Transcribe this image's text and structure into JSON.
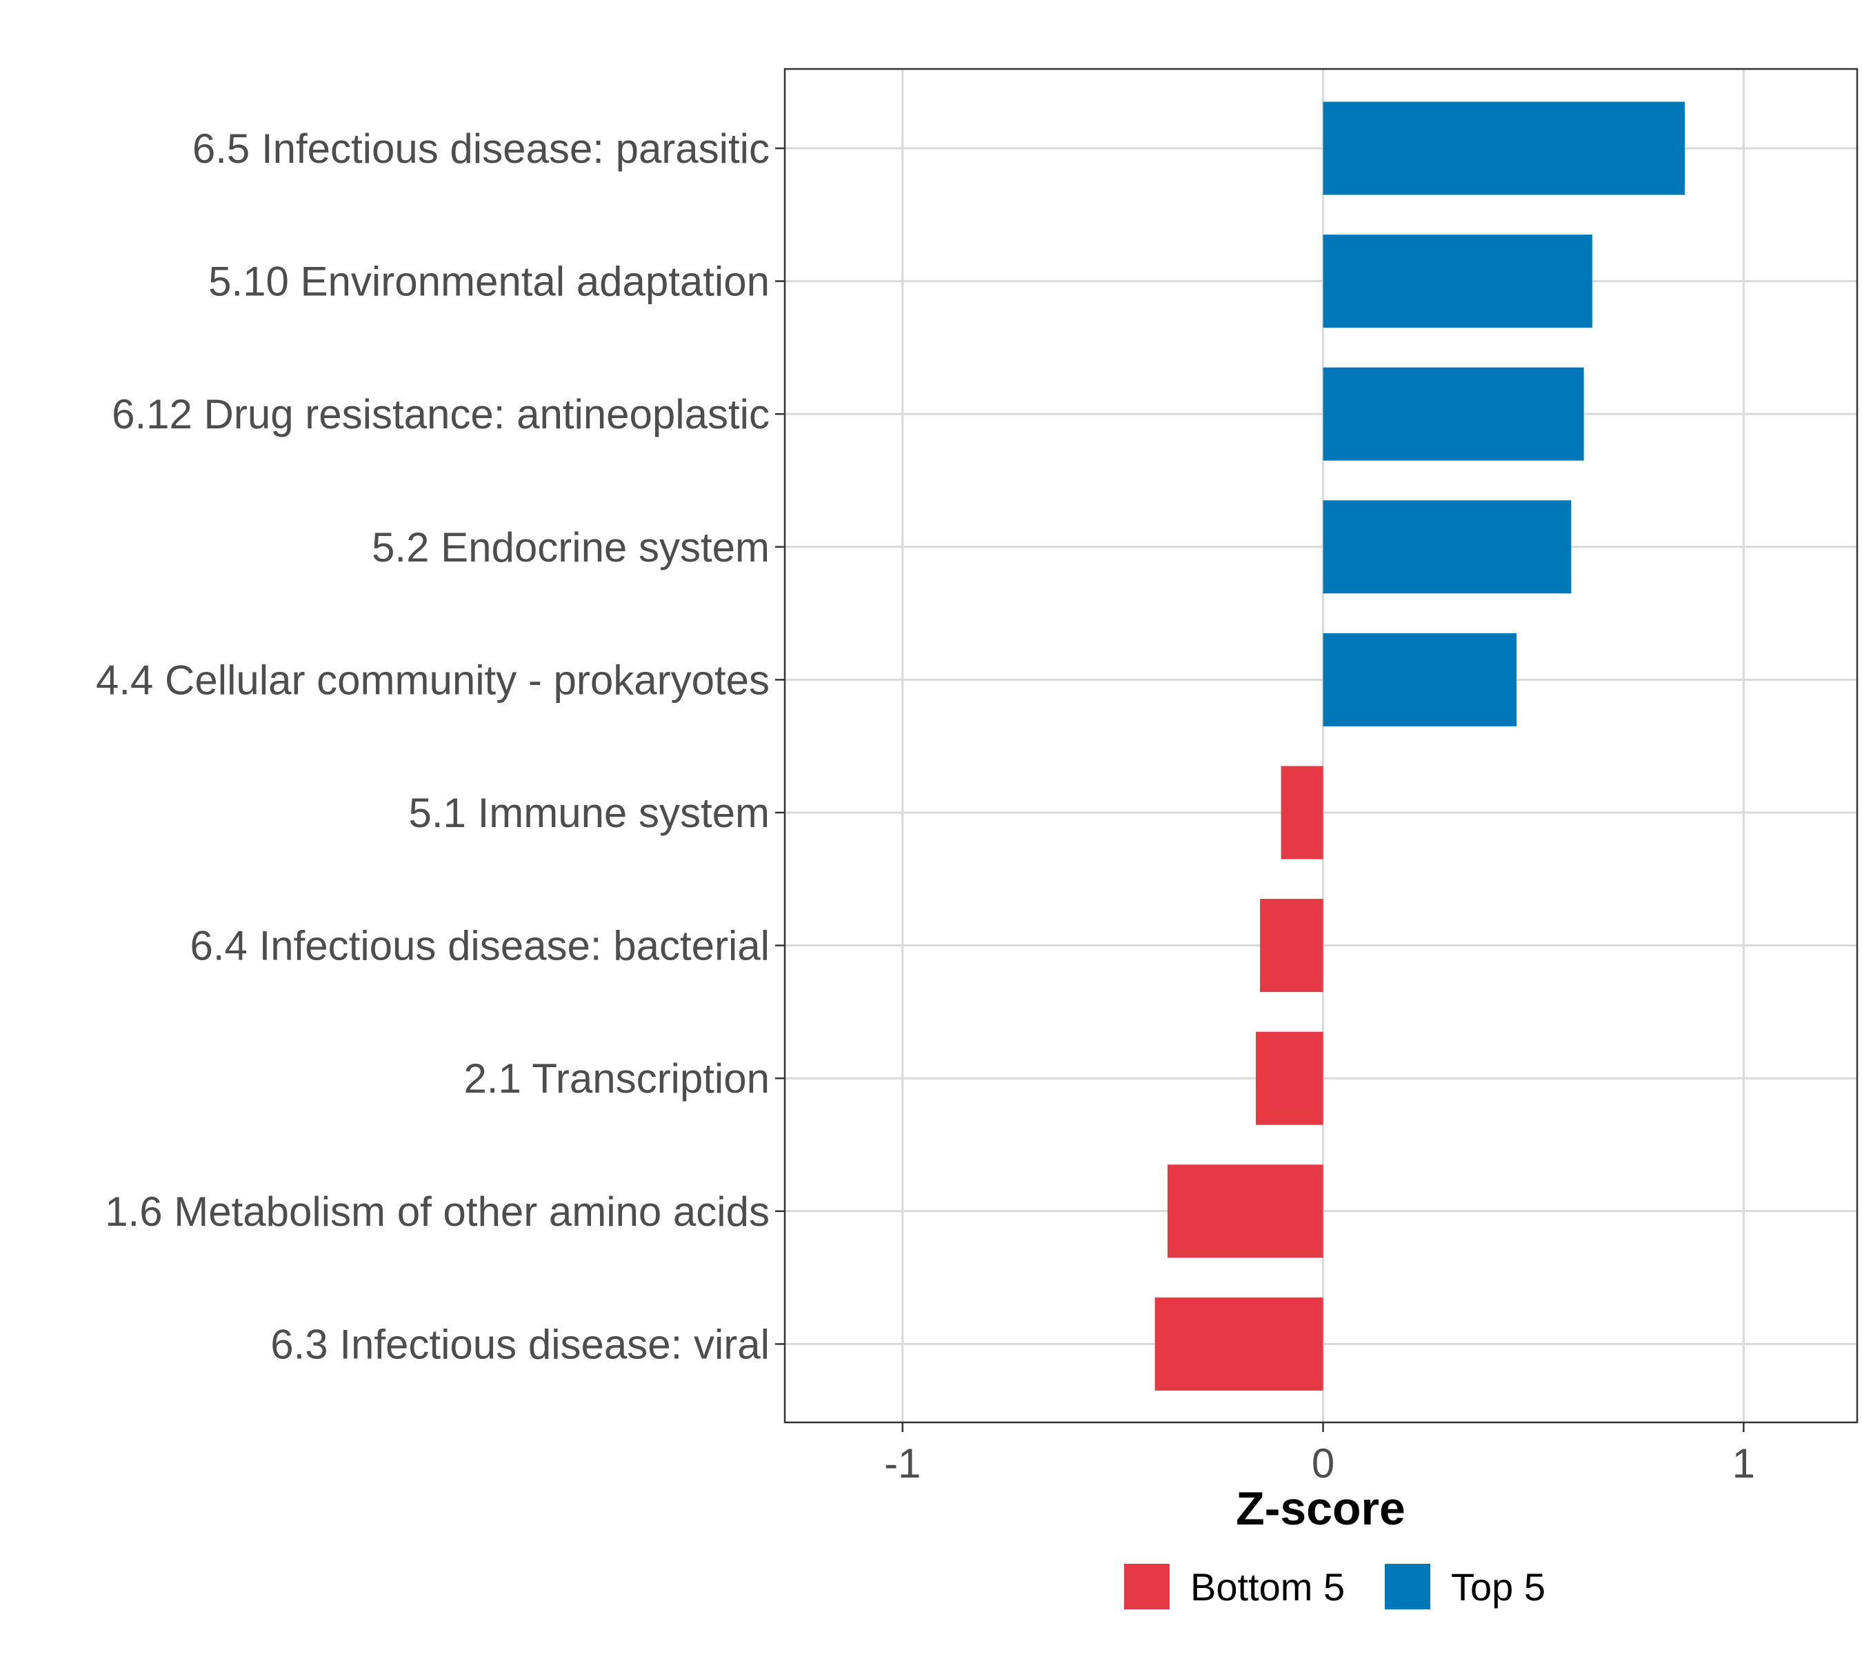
{
  "chart_data": {
    "type": "bar",
    "orientation": "horizontal",
    "title": "",
    "xlabel": "Z-score",
    "ylabel": "",
    "xlim": [
      -1.28,
      1.27
    ],
    "xticks": [
      -1,
      0,
      1
    ],
    "xtick_labels": [
      "-1",
      "0",
      "1"
    ],
    "grid": true,
    "legend_position": "bottom",
    "categories": [
      "6.5 Infectious disease: parasitic",
      "5.10 Environmental adaptation",
      "6.12 Drug resistance: antineoplastic",
      "5.2 Endocrine system",
      "4.4 Cellular community - prokaryotes",
      "5.1 Immune system",
      "6.4 Infectious disease: bacterial",
      "2.1 Transcription",
      "1.6 Metabolism of other amino acids",
      "6.3 Infectious disease: viral"
    ],
    "values": [
      0.86,
      0.64,
      0.62,
      0.59,
      0.46,
      -0.1,
      -0.15,
      -0.16,
      -0.37,
      -0.4
    ],
    "groups": [
      "Top 5",
      "Top 5",
      "Top 5",
      "Top 5",
      "Top 5",
      "Bottom 5",
      "Bottom 5",
      "Bottom 5",
      "Bottom 5",
      "Bottom 5"
    ],
    "legend": [
      {
        "name": "Bottom 5",
        "color": "#E63946"
      },
      {
        "name": "Top 5",
        "color": "#0077B6"
      }
    ]
  },
  "colors": {
    "grid": "#D9D9D9",
    "axis_text": "#4D4D4D",
    "panel_border": "#333333"
  }
}
